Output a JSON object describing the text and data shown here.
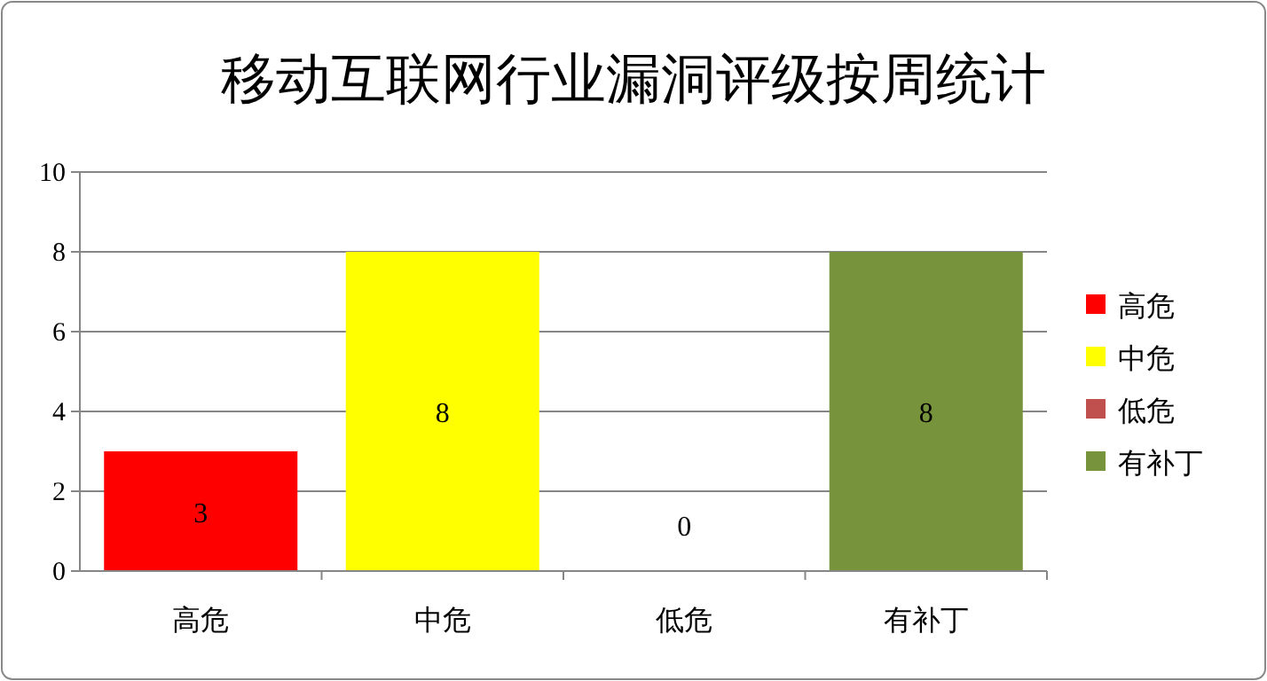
{
  "chart_data": {
    "type": "bar",
    "title": "移动互联网行业漏洞评级按周统计",
    "categories": [
      "高危",
      "中危",
      "低危",
      "有补丁"
    ],
    "stacked": true,
    "series": [
      {
        "name": "高危",
        "color": "#ff0000",
        "values": [
          3,
          null,
          null,
          null
        ]
      },
      {
        "name": "中危",
        "color": "#ffff00",
        "values": [
          null,
          8,
          null,
          null
        ]
      },
      {
        "name": "低危",
        "color": "#c0504d",
        "values": [
          null,
          null,
          0,
          null
        ]
      },
      {
        "name": "有补丁",
        "color": "#77933c",
        "values": [
          null,
          null,
          null,
          8
        ]
      }
    ],
    "ylim": [
      0,
      10
    ],
    "yticks": [
      0,
      2,
      4,
      6,
      8,
      10
    ],
    "grid": "y",
    "legend": "right",
    "data_labels": true
  }
}
